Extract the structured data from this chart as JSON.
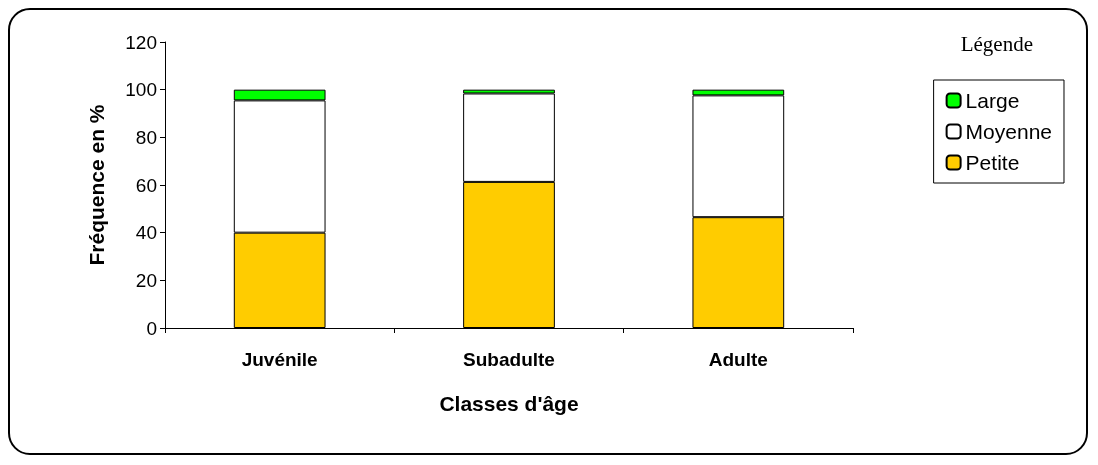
{
  "chart_data": {
    "type": "bar",
    "stacked": true,
    "xlabel": "Classes d'âge",
    "ylabel": "Fréquence en %",
    "legend_title": "Légende",
    "legend": "right",
    "grid": false,
    "categories": [
      "Juvénile",
      "Subadulte",
      "Adulte"
    ],
    "series": [
      {
        "name": "Petite",
        "color": "#ffcc00",
        "values": [
          40,
          61.3,
          46.5
        ]
      },
      {
        "name": "Moyenne",
        "color": "#ffffff",
        "values": [
          55.5,
          37.1,
          51.1
        ]
      },
      {
        "name": "Large",
        "color": "#00ff00",
        "values": [
          4.5,
          1.6,
          2.4
        ]
      }
    ],
    "ylim": [
      0,
      120
    ],
    "yticks": [
      0,
      20,
      40,
      60,
      80,
      100,
      120
    ]
  }
}
